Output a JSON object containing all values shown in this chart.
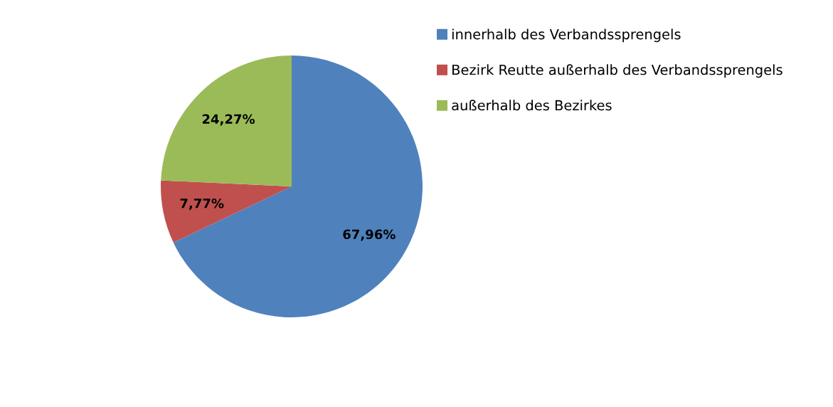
{
  "chart_data": {
    "type": "pie",
    "categories": [
      "innerhalb des Verbandssprengels",
      "Bezirk Reutte außerhalb des Verbandssprengels",
      "außerhalb des Bezirkes"
    ],
    "values": [
      67.96,
      7.77,
      24.27
    ],
    "colors": [
      "#4f81bd",
      "#c0504d",
      "#9bbb59"
    ],
    "value_labels": [
      "67,96%",
      "7,77%",
      "24,27%"
    ],
    "legend": "top right"
  }
}
